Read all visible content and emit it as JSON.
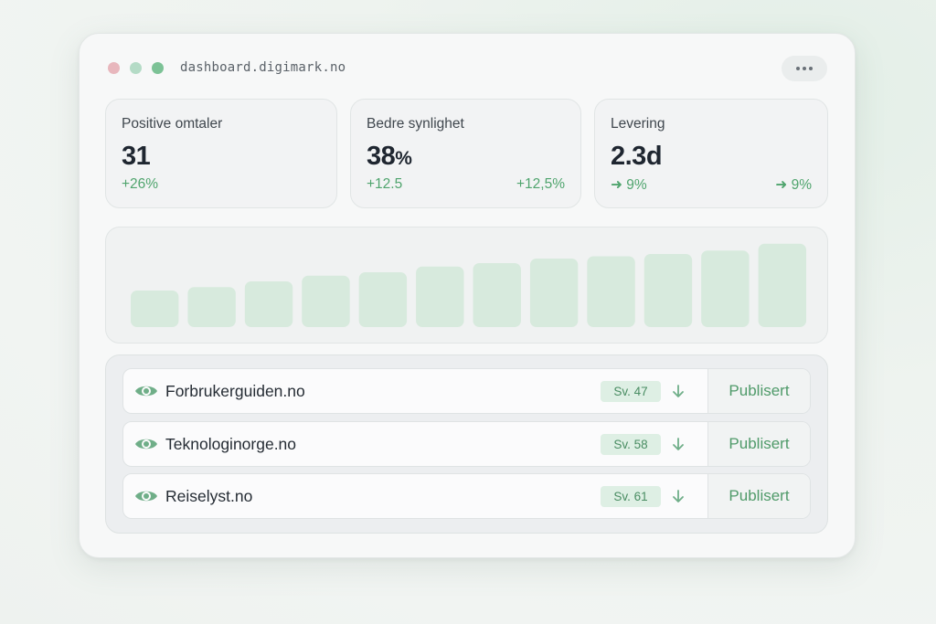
{
  "window": {
    "url": "dashboard.digimark.no",
    "menu_icon": "more-horizontal-icon"
  },
  "stats": [
    {
      "label": "Positive omtaler",
      "value": "31",
      "unit": "",
      "delta_left": "+26%",
      "delta_right": ""
    },
    {
      "label": "Bedre synlighet",
      "value": "38",
      "unit": "%",
      "delta_left": "+12.5",
      "delta_right": "+12,5%"
    },
    {
      "label": "Levering",
      "value": "2.3d",
      "unit": "",
      "delta_left": "➜ 9%",
      "delta_right": "➜ 9%"
    }
  ],
  "chart_data": {
    "type": "bar",
    "values": [
      3.2,
      3.5,
      4.0,
      4.5,
      4.8,
      5.3,
      5.6,
      6.0,
      6.2,
      6.4,
      6.7,
      7.3
    ],
    "ylim": [
      0,
      8
    ],
    "bar_color": "#d7eadd"
  },
  "list": {
    "items": [
      {
        "name": "Forbrukerguiden.no",
        "badge": "Sv. 47",
        "action": "Publisert"
      },
      {
        "name": "Teknologinorge.no",
        "badge": "Sv. 58",
        "action": "Publisert"
      },
      {
        "name": "Reiselyst.no",
        "badge": "Sv. 61",
        "action": "Publisert"
      }
    ],
    "row_icon": "eye-icon",
    "arrow_icon": "arrow-down-icon"
  },
  "colors": {
    "accent_green": "#4f9a69",
    "badge_bg": "#deefe4",
    "text_dark": "#1f2630"
  }
}
